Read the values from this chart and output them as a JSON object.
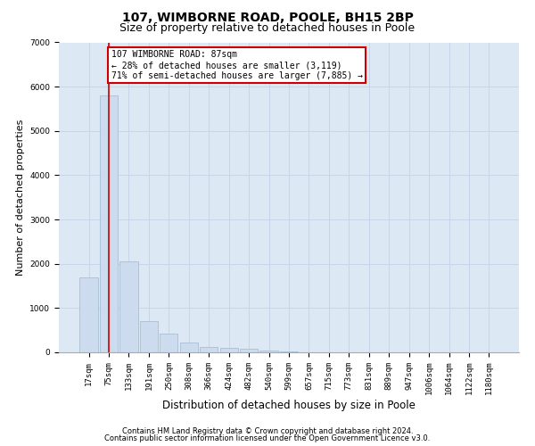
{
  "title": "107, WIMBORNE ROAD, POOLE, BH15 2BP",
  "subtitle": "Size of property relative to detached houses in Poole",
  "xlabel": "Distribution of detached houses by size in Poole",
  "ylabel": "Number of detached properties",
  "categories": [
    "17sqm",
    "75sqm",
    "133sqm",
    "191sqm",
    "250sqm",
    "308sqm",
    "366sqm",
    "424sqm",
    "482sqm",
    "540sqm",
    "599sqm",
    "657sqm",
    "715sqm",
    "773sqm",
    "831sqm",
    "889sqm",
    "947sqm",
    "1006sqm",
    "1064sqm",
    "1122sqm",
    "1180sqm"
  ],
  "values": [
    1700,
    5800,
    2050,
    700,
    430,
    220,
    130,
    110,
    80,
    50,
    30,
    0,
    0,
    0,
    0,
    0,
    0,
    0,
    0,
    0,
    0
  ],
  "bar_color": "#ccdcee",
  "bar_edge_color": "#a0b8d0",
  "property_label": "107 WIMBORNE ROAD: 87sqm",
  "pct_smaller": "28%",
  "count_smaller": "3,119",
  "pct_larger_semi": "71%",
  "count_larger_semi": "7,885",
  "vline_x": 1.0,
  "annotation_box_color": "#ffffff",
  "annotation_border_color": "#cc0000",
  "grid_color": "#c8d4e8",
  "bg_color": "#dce8f4",
  "footer1": "Contains HM Land Registry data © Crown copyright and database right 2024.",
  "footer2": "Contains public sector information licensed under the Open Government Licence v3.0.",
  "ylim": [
    0,
    7000
  ],
  "yticks": [
    0,
    1000,
    2000,
    3000,
    4000,
    5000,
    6000,
    7000
  ],
  "title_fontsize": 10,
  "subtitle_fontsize": 9,
  "tick_fontsize": 6.5,
  "ylabel_fontsize": 8,
  "xlabel_fontsize": 8.5
}
